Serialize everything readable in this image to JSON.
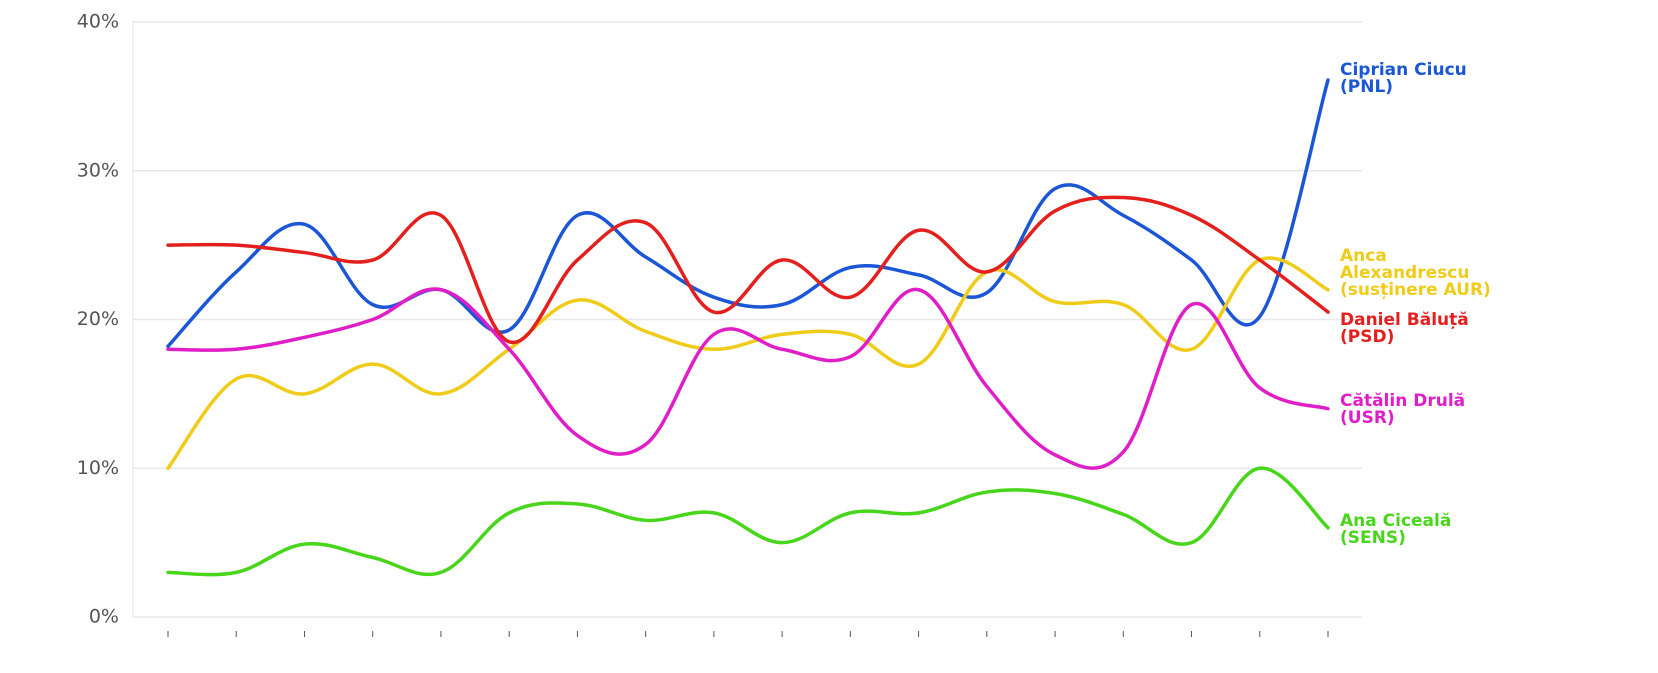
{
  "chart_data": {
    "type": "line",
    "categories": [
      null,
      null,
      null,
      null,
      null,
      null,
      null,
      null,
      null,
      null,
      null,
      null,
      null,
      null,
      null,
      null,
      null,
      null
    ],
    "series": [
      {
        "name": "Ciprian Ciucu (PNL)",
        "color": "#1a56d6",
        "values": [
          18.2,
          23.2,
          26.4,
          21,
          22,
          19.3,
          27,
          24.2,
          21.5,
          21,
          23.5,
          23,
          21.8,
          28.8,
          27,
          24,
          20.2,
          36.1
        ]
      },
      {
        "name": "Anca Alexandrescu (susținere AUR)",
        "color": "#f0cc1a",
        "values": [
          10,
          16,
          15,
          17,
          15,
          18,
          21.3,
          19.2,
          18,
          19,
          19,
          17,
          23.2,
          21.2,
          21,
          18,
          24,
          22
        ]
      },
      {
        "name": "Daniel Băluță (PSD)",
        "color": "#e3201e",
        "values": [
          25,
          25,
          24.5,
          24,
          27,
          18.5,
          24,
          26.5,
          20.5,
          24,
          21.5,
          26,
          23.2,
          27.3,
          28.2,
          27,
          24,
          20.5
        ]
      },
      {
        "name": "Cătălin Drulă (USR)",
        "color": "#e01ec8",
        "values": [
          18,
          18,
          18.8,
          20,
          22,
          18,
          12.2,
          11.6,
          19,
          18,
          17.5,
          22,
          15.5,
          10.9,
          11.1,
          21,
          15.4,
          14
        ]
      },
      {
        "name": "Ana Ciceală (SENS)",
        "color": "#47d61a",
        "values": [
          3,
          3,
          4.9,
          4,
          3,
          7,
          7.6,
          6.5,
          7,
          5,
          7,
          7,
          8.4,
          8.3,
          6.9,
          5,
          10,
          6
        ]
      }
    ],
    "ylim": [
      0,
      40
    ],
    "yticks": [
      {
        "value": 0,
        "label": "0%"
      },
      {
        "value": 10,
        "label": "10%"
      },
      {
        "value": 20,
        "label": "20%"
      },
      {
        "value": 30,
        "label": "30%"
      },
      {
        "value": 40,
        "label": "40%"
      }
    ],
    "grid": true
  }
}
